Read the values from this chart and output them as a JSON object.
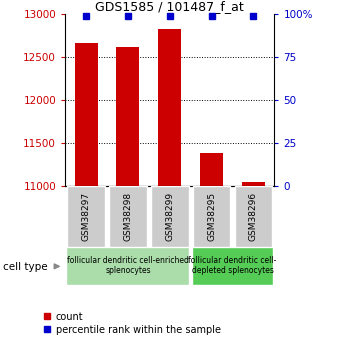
{
  "title": "GDS1585 / 101487_f_at",
  "samples": [
    "GSM38297",
    "GSM38298",
    "GSM38299",
    "GSM38295",
    "GSM38296"
  ],
  "counts": [
    12660,
    12620,
    12820,
    11390,
    11055
  ],
  "percentiles": [
    99,
    99,
    99,
    99,
    99
  ],
  "ylim_left": [
    11000,
    13000
  ],
  "ylim_right": [
    0,
    100
  ],
  "yticks_left": [
    11000,
    11500,
    12000,
    12500,
    13000
  ],
  "yticks_right": [
    0,
    25,
    50,
    75,
    100
  ],
  "bar_color": "#cc0000",
  "percentile_color": "#0000cc",
  "group1_samples": [
    0,
    1,
    2
  ],
  "group2_samples": [
    3,
    4
  ],
  "group1_label": "follicular dendritic cell-enriched\nsplenocytes",
  "group2_label": "follicular dendritic cell-\ndepleted splenocytes",
  "group1_color": "#aaddaa",
  "group2_color": "#55cc55",
  "tick_bg_color": "#cccccc",
  "cell_type_label": "cell type",
  "legend_count_label": "count",
  "legend_percentile_label": "percentile rank within the sample"
}
